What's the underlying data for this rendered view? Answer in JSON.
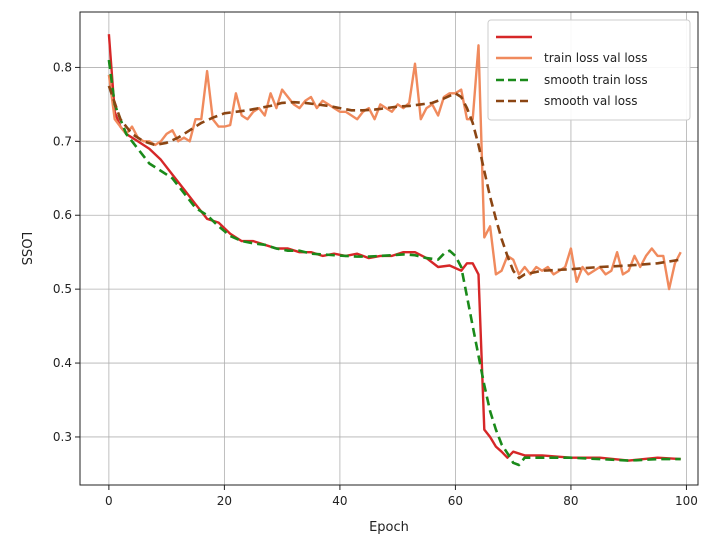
{
  "chart_data": {
    "type": "line",
    "xlabel": "Epoch",
    "ylabel": "LOSS",
    "xlim": [
      -5,
      102
    ],
    "ylim": [
      0.235,
      0.875
    ],
    "xticks": [
      0,
      20,
      40,
      60,
      80,
      100
    ],
    "yticks": [
      0.3,
      0.4,
      0.5,
      0.6,
      0.7,
      0.8
    ],
    "xtick_labels": [
      "0",
      "20",
      "40",
      "60",
      "80",
      "100"
    ],
    "ytick_labels": [
      "0.3",
      "0.4",
      "0.5",
      "0.6",
      "0.7",
      "0.8"
    ],
    "grid": true,
    "legend_position": "top-right",
    "legend_labels": [
      "",
      "train loss val loss",
      "smooth train loss",
      "smooth val loss"
    ],
    "series": [
      {
        "color": "#d62728",
        "style": "solid",
        "x": [
          0,
          1,
          2,
          3,
          5,
          7,
          9,
          11,
          13,
          15,
          17,
          19,
          21,
          23,
          25,
          27,
          29,
          31,
          33,
          35,
          37,
          39,
          41,
          43,
          45,
          47,
          49,
          51,
          53,
          55,
          57,
          59,
          61,
          62,
          63,
          64,
          65,
          66,
          67,
          68,
          69,
          70,
          72,
          75,
          80,
          85,
          90,
          95,
          99
        ],
        "y": [
          0.845,
          0.74,
          0.72,
          0.71,
          0.7,
          0.69,
          0.675,
          0.655,
          0.635,
          0.615,
          0.595,
          0.59,
          0.575,
          0.565,
          0.565,
          0.56,
          0.555,
          0.555,
          0.55,
          0.55,
          0.545,
          0.548,
          0.545,
          0.548,
          0.542,
          0.545,
          0.545,
          0.55,
          0.55,
          0.542,
          0.53,
          0.532,
          0.525,
          0.535,
          0.535,
          0.52,
          0.31,
          0.3,
          0.287,
          0.28,
          0.272,
          0.28,
          0.275,
          0.275,
          0.272,
          0.272,
          0.268,
          0.272,
          0.27
        ]
      },
      {
        "color": "#f08a5d",
        "style": "solid",
        "x": [
          0,
          1,
          2,
          3,
          4,
          5,
          6,
          7,
          8,
          9,
          10,
          11,
          12,
          13,
          14,
          15,
          16,
          17,
          18,
          19,
          20,
          21,
          22,
          23,
          24,
          25,
          26,
          27,
          28,
          29,
          30,
          31,
          32,
          33,
          34,
          35,
          36,
          37,
          38,
          39,
          40,
          41,
          42,
          43,
          44,
          45,
          46,
          47,
          48,
          49,
          50,
          51,
          52,
          53,
          54,
          55,
          56,
          57,
          58,
          59,
          60,
          61,
          62,
          63,
          64,
          65,
          66,
          67,
          68,
          69,
          70,
          71,
          72,
          73,
          74,
          75,
          76,
          77,
          78,
          79,
          80,
          81,
          82,
          83,
          84,
          85,
          86,
          87,
          88,
          89,
          90,
          91,
          92,
          93,
          94,
          95,
          96,
          97,
          98,
          99
        ],
        "y": [
          0.79,
          0.73,
          0.72,
          0.71,
          0.72,
          0.705,
          0.7,
          0.7,
          0.695,
          0.7,
          0.71,
          0.715,
          0.7,
          0.705,
          0.7,
          0.73,
          0.73,
          0.795,
          0.73,
          0.72,
          0.72,
          0.722,
          0.765,
          0.735,
          0.73,
          0.74,
          0.745,
          0.735,
          0.765,
          0.745,
          0.77,
          0.76,
          0.75,
          0.745,
          0.755,
          0.76,
          0.745,
          0.755,
          0.75,
          0.745,
          0.74,
          0.74,
          0.735,
          0.73,
          0.74,
          0.745,
          0.73,
          0.75,
          0.745,
          0.74,
          0.75,
          0.745,
          0.752,
          0.805,
          0.73,
          0.745,
          0.75,
          0.735,
          0.76,
          0.765,
          0.765,
          0.77,
          0.73,
          0.73,
          0.83,
          0.57,
          0.585,
          0.52,
          0.525,
          0.545,
          0.54,
          0.52,
          0.53,
          0.52,
          0.53,
          0.525,
          0.53,
          0.52,
          0.525,
          0.53,
          0.555,
          0.51,
          0.53,
          0.52,
          0.525,
          0.53,
          0.52,
          0.525,
          0.55,
          0.52,
          0.525,
          0.545,
          0.53,
          0.545,
          0.555,
          0.545,
          0.545,
          0.5,
          0.535,
          0.55
        ]
      },
      {
        "color": "#1a8a1a",
        "style": "dashed",
        "x": [
          0,
          1,
          2,
          3,
          5,
          7,
          9,
          11,
          13,
          15,
          17,
          19,
          21,
          23,
          25,
          27,
          29,
          31,
          33,
          35,
          37,
          39,
          41,
          43,
          45,
          47,
          49,
          51,
          53,
          55,
          57,
          58,
          59,
          60,
          61,
          62,
          63,
          64,
          65,
          66,
          67,
          68,
          69,
          70,
          71,
          72,
          75,
          80,
          85,
          90,
          95,
          99
        ],
        "y": [
          0.81,
          0.75,
          0.73,
          0.71,
          0.69,
          0.67,
          0.66,
          0.65,
          0.63,
          0.61,
          0.6,
          0.585,
          0.572,
          0.565,
          0.562,
          0.56,
          0.555,
          0.552,
          0.552,
          0.548,
          0.547,
          0.546,
          0.545,
          0.544,
          0.544,
          0.545,
          0.546,
          0.547,
          0.546,
          0.542,
          0.54,
          0.548,
          0.552,
          0.545,
          0.53,
          0.49,
          0.45,
          0.41,
          0.37,
          0.335,
          0.31,
          0.29,
          0.278,
          0.265,
          0.262,
          0.272,
          0.272,
          0.272,
          0.27,
          0.268,
          0.27,
          0.27
        ]
      },
      {
        "color": "#8b4513",
        "style": "dashed",
        "x": [
          0,
          2,
          4,
          6,
          8,
          10,
          12,
          14,
          16,
          18,
          20,
          22,
          24,
          26,
          28,
          30,
          32,
          34,
          36,
          38,
          40,
          42,
          44,
          46,
          48,
          50,
          52,
          54,
          56,
          58,
          60,
          61,
          62,
          63,
          64,
          65,
          66,
          67,
          68,
          69,
          70,
          71,
          72,
          75,
          80,
          85,
          90,
          95,
          99
        ],
        "y": [
          0.775,
          0.73,
          0.71,
          0.7,
          0.695,
          0.698,
          0.705,
          0.715,
          0.725,
          0.732,
          0.738,
          0.74,
          0.742,
          0.745,
          0.748,
          0.752,
          0.753,
          0.752,
          0.75,
          0.748,
          0.745,
          0.742,
          0.742,
          0.743,
          0.745,
          0.747,
          0.748,
          0.75,
          0.752,
          0.758,
          0.765,
          0.76,
          0.745,
          0.725,
          0.695,
          0.66,
          0.625,
          0.595,
          0.568,
          0.545,
          0.525,
          0.515,
          0.52,
          0.525,
          0.527,
          0.53,
          0.532,
          0.535,
          0.54
        ]
      }
    ]
  }
}
